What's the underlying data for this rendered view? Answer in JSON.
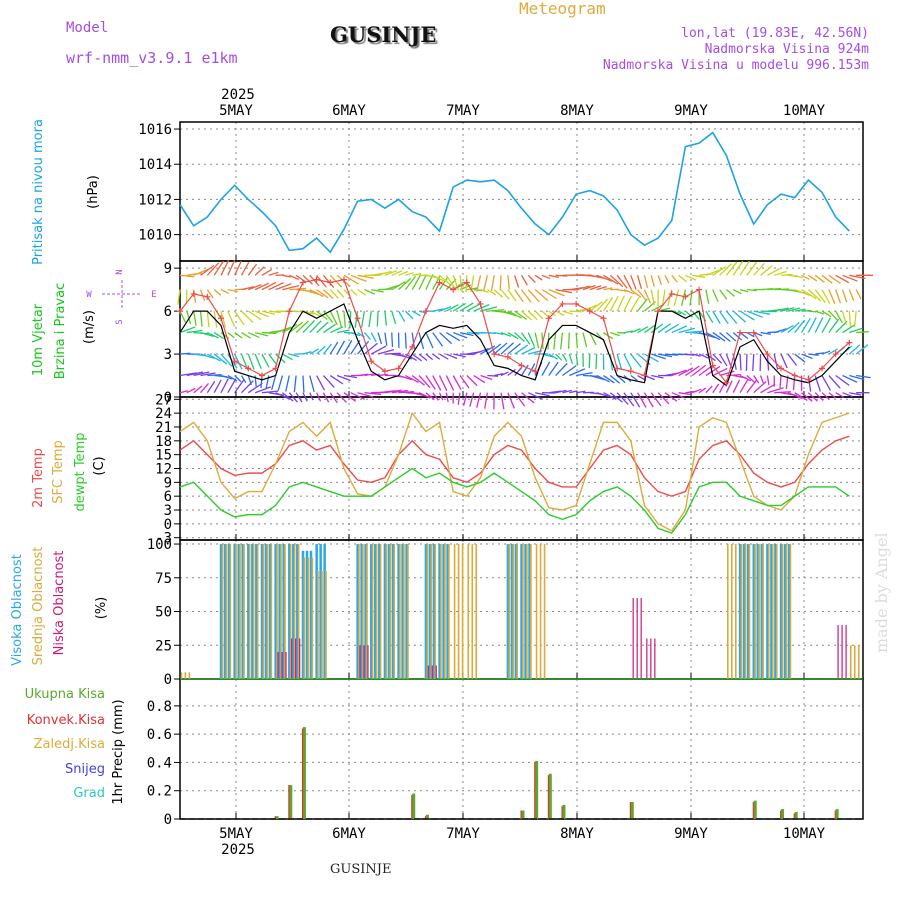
{
  "header": {
    "model_label": "Model",
    "model_name": "wrf-nmm_v3.9.1 e1km",
    "title": "GUSINJE",
    "meteogram": "Meteogram",
    "lonlat": "lon,lat (19.83E, 42.56N)",
    "altitude": "Nadmorska Visina 924m",
    "model_altitude": "Nadmorska Visina u modelu 996.153m",
    "bottom_title": "GUSINJE",
    "watermark": "made by Angel",
    "year": "2025"
  },
  "colors": {
    "pressure": "#1ca3e6",
    "wind_label": "#16c61c",
    "t2m": "#ec4c4c",
    "sfc": "#e0aa3a",
    "dewpt": "#2ccc2c",
    "high_cloud": "#2aa8e8",
    "mid_cloud": "#dcaa3c",
    "low_cloud": "#cc1a78",
    "precip_total": "#5aaa2a",
    "precip_conv": "#dd3333",
    "wind_speed_max": "#ec4c4c",
    "wind_speed": "#000000",
    "compass": "#a64ce6"
  },
  "chart_data": [
    {
      "panel": "pressure",
      "type": "line",
      "ylabel_side": "Pritisak na nivou mora",
      "ylabel": "(hPa)",
      "x_labels": [
        "5MAY",
        "6MAY",
        "7MAY",
        "8MAY",
        "9MAY",
        "10MAY"
      ],
      "ylim": [
        1008.5,
        1016.4
      ],
      "yticks": [
        1010,
        1012,
        1014,
        1016
      ],
      "grid": true,
      "x_hours": [
        0,
        3,
        6,
        9,
        12,
        15,
        18,
        21,
        24,
        27,
        30,
        33,
        36,
        39,
        42,
        45,
        48,
        51,
        54,
        57,
        60,
        63,
        66,
        69,
        72,
        75,
        78,
        81,
        84,
        87,
        90,
        93,
        96,
        99,
        102,
        105,
        108,
        111,
        114,
        117,
        120,
        123,
        126,
        129,
        132,
        135,
        138,
        141,
        144,
        147
      ],
      "series": [
        {
          "values": [
            1011.7,
            1010.5,
            1011.0,
            1012.0,
            1012.8,
            1012.0,
            1011.3,
            1010.5,
            1009.1,
            1009.2,
            1009.8,
            1009.0,
            1010.3,
            1011.9,
            1012.0,
            1011.5,
            1012.0,
            1011.3,
            1011.0,
            1010.2,
            1012.7,
            1013.1,
            1013.0,
            1013.1,
            1012.5,
            1011.5,
            1010.6,
            1010.0,
            1011.0,
            1012.3,
            1012.5,
            1012.2,
            1011.4,
            1010.0,
            1009.4,
            1009.8,
            1010.8,
            1015.0,
            1015.2,
            1015.8,
            1014.5,
            1012.3,
            1010.6,
            1011.7,
            1012.3,
            1012.1,
            1013.1,
            1012.4,
            1011.0,
            1010.2
          ]
        }
      ]
    },
    {
      "panel": "wind",
      "type": "line",
      "ylabel_side": "10m Vjetar Brzina i Pravac",
      "ylabel": "(m/s)",
      "compass": [
        "N",
        "W",
        "E",
        "S"
      ],
      "ylim": [
        0,
        9.5
      ],
      "yticks": [
        0,
        3,
        6,
        9
      ],
      "grid": true,
      "x_hours": [
        0,
        3,
        6,
        9,
        12,
        15,
        18,
        21,
        24,
        27,
        30,
        33,
        36,
        39,
        42,
        45,
        48,
        51,
        54,
        57,
        60,
        63,
        66,
        69,
        72,
        75,
        78,
        81,
        84,
        87,
        90,
        93,
        96,
        99,
        102,
        105,
        108,
        111,
        114,
        117,
        120,
        123,
        126,
        129,
        132,
        135,
        138,
        141,
        144,
        147
      ],
      "series": [
        {
          "name": "speed",
          "values": [
            4.5,
            6.0,
            6.0,
            5.0,
            1.8,
            1.5,
            1.2,
            1.5,
            4.5,
            6.0,
            5.5,
            6.0,
            6.5,
            4.0,
            1.8,
            1.2,
            1.5,
            3.0,
            4.5,
            5.0,
            4.8,
            5.0,
            4.0,
            2.2,
            2.0,
            1.5,
            1.2,
            4.0,
            5.0,
            5.0,
            4.5,
            4.0,
            1.5,
            1.2,
            1.0,
            6.0,
            6.0,
            5.5,
            6.0,
            1.5,
            0.8,
            3.5,
            4.0,
            2.5,
            1.5,
            1.2,
            1.0,
            1.5,
            2.5,
            3.5
          ]
        },
        {
          "name": "gust",
          "values": [
            6.0,
            7.2,
            7.0,
            5.5,
            2.5,
            2.0,
            1.5,
            2.0,
            6.0,
            8.0,
            8.2,
            8.0,
            8.2,
            5.5,
            2.5,
            1.8,
            2.0,
            3.5,
            6.0,
            8.0,
            7.5,
            8.0,
            6.5,
            3.0,
            2.8,
            2.2,
            1.8,
            5.5,
            6.5,
            6.5,
            6.0,
            5.5,
            2.0,
            1.8,
            1.5,
            6.0,
            7.2,
            7.0,
            7.5,
            2.2,
            1.0,
            4.5,
            4.5,
            3.0,
            2.0,
            1.5,
            1.2,
            2.0,
            3.0,
            3.8
          ]
        }
      ],
      "arrow_rows": [
        0.3,
        1.5,
        3.0,
        4.5,
        6.0,
        7.5,
        8.5
      ]
    },
    {
      "panel": "temperature",
      "type": "line",
      "ylabel_side": [
        "2m Temp",
        "SFC Temp",
        "dewpt Temp"
      ],
      "ylabel": "(C)",
      "ylim": [
        -3.5,
        27.5
      ],
      "yticks": [
        -3,
        0,
        3,
        6,
        9,
        12,
        15,
        18,
        21,
        24,
        27
      ],
      "grid": true,
      "x_hours": [
        0,
        3,
        6,
        9,
        12,
        15,
        18,
        21,
        24,
        27,
        30,
        33,
        36,
        39,
        42,
        45,
        48,
        51,
        54,
        57,
        60,
        63,
        66,
        69,
        72,
        75,
        78,
        81,
        84,
        87,
        90,
        93,
        96,
        99,
        102,
        105,
        108,
        111,
        114,
        117,
        120,
        123,
        126,
        129,
        132,
        135,
        138,
        141,
        144,
        147
      ],
      "series": [
        {
          "name": "2m Temp",
          "values": [
            16,
            18,
            15,
            12,
            10.5,
            11,
            11,
            13,
            17,
            18,
            16,
            17,
            13,
            9.5,
            9,
            10,
            15,
            18,
            15,
            14,
            10,
            9,
            11,
            15,
            17,
            16,
            12,
            9,
            8,
            8,
            12,
            16,
            17,
            15,
            10,
            7,
            6,
            7,
            14,
            17,
            18,
            15,
            11,
            9,
            8,
            9,
            13,
            16,
            18,
            19
          ]
        },
        {
          "name": "SFC Temp",
          "values": [
            20,
            22,
            18,
            9,
            5.5,
            7,
            7,
            13,
            20,
            22,
            19,
            22,
            12,
            6.5,
            6,
            8,
            15,
            24,
            20,
            22,
            7,
            6,
            10,
            19,
            22,
            19,
            10,
            3.5,
            3,
            4,
            13,
            22,
            22,
            18,
            4,
            0,
            -1.5,
            3,
            21,
            23,
            22,
            14,
            6,
            4,
            3,
            6,
            15,
            22,
            23,
            24
          ]
        },
        {
          "name": "dewpt Temp",
          "values": [
            8,
            9,
            6,
            3,
            1.5,
            2,
            2,
            4,
            8,
            9,
            8,
            7,
            6,
            6,
            6,
            8,
            10,
            12,
            10,
            11,
            9,
            8,
            9,
            11,
            9,
            7,
            5,
            2,
            1,
            2,
            5,
            7,
            8,
            6,
            3,
            -1,
            -2,
            2,
            8,
            9,
            9,
            6,
            5,
            4,
            4,
            6,
            8,
            8,
            8,
            6
          ]
        }
      ]
    },
    {
      "panel": "clouds",
      "type": "bar",
      "ylabel_side": [
        "Visoka Oblacnost",
        "Srednja Oblacnost",
        "Niska Oblacnost"
      ],
      "ylabel": "(%)",
      "ylim": [
        0,
        103
      ],
      "yticks": [
        0,
        25,
        50,
        75,
        100
      ],
      "grid": true,
      "x_hours": [
        0,
        3,
        6,
        9,
        12,
        15,
        18,
        21,
        24,
        27,
        30,
        33,
        36,
        39,
        42,
        45,
        48,
        51,
        54,
        57,
        60,
        63,
        66,
        69,
        72,
        75,
        78,
        81,
        84,
        87,
        90,
        93,
        96,
        99,
        102,
        105,
        108,
        111,
        114,
        117,
        120,
        123,
        126,
        129,
        132,
        135,
        138,
        141,
        144,
        147
      ],
      "series": [
        {
          "name": "Visoka Oblacnost",
          "values": [
            0,
            0,
            0,
            100,
            100,
            100,
            100,
            100,
            100,
            95,
            100,
            0,
            0,
            100,
            100,
            100,
            100,
            0,
            100,
            100,
            0,
            0,
            0,
            0,
            100,
            100,
            0,
            0,
            0,
            0,
            0,
            0,
            0,
            0,
            0,
            0,
            0,
            0,
            0,
            0,
            0,
            100,
            100,
            100,
            100,
            0,
            0,
            0,
            0,
            0
          ]
        },
        {
          "name": "Srednja Oblacnost",
          "values": [
            5,
            0,
            0,
            100,
            100,
            100,
            100,
            100,
            100,
            90,
            80,
            0,
            0,
            100,
            100,
            100,
            100,
            0,
            100,
            100,
            100,
            100,
            0,
            0,
            100,
            100,
            100,
            0,
            0,
            0,
            0,
            0,
            0,
            0,
            0,
            0,
            0,
            0,
            0,
            0,
            100,
            100,
            100,
            100,
            100,
            0,
            0,
            0,
            0,
            25
          ]
        },
        {
          "name": "Niska Oblacnost",
          "values": [
            0,
            0,
            0,
            0,
            0,
            0,
            0,
            20,
            30,
            0,
            0,
            0,
            0,
            25,
            0,
            0,
            0,
            0,
            10,
            0,
            0,
            0,
            0,
            0,
            0,
            0,
            0,
            0,
            0,
            0,
            0,
            0,
            0,
            60,
            30,
            0,
            0,
            0,
            0,
            0,
            0,
            0,
            0,
            0,
            0,
            0,
            0,
            0,
            40,
            0
          ]
        }
      ]
    },
    {
      "panel": "precipitation",
      "type": "bar",
      "ylabel_side": [
        "Ukupna Kisa",
        "Konvek.Kisa",
        "Zaledj.Kisa",
        "Snijeg",
        "Grad"
      ],
      "ylabel": "1hr Precip (mm)",
      "ylim": [
        0,
        0.99
      ],
      "yticks": [
        0,
        0.2,
        0.4,
        0.6,
        0.8
      ],
      "grid": true,
      "x_hours": [
        0,
        3,
        6,
        9,
        12,
        15,
        18,
        21,
        24,
        27,
        30,
        33,
        36,
        39,
        42,
        45,
        48,
        51,
        54,
        57,
        60,
        63,
        66,
        69,
        72,
        75,
        78,
        81,
        84,
        87,
        90,
        93,
        96,
        99,
        102,
        105,
        108,
        111,
        114,
        117,
        120,
        123,
        126,
        129,
        132,
        135,
        138,
        141,
        144,
        147
      ],
      "series": [
        {
          "name": "Ukupna Kisa",
          "values": [
            0,
            0,
            0,
            0,
            0,
            0,
            0,
            0.02,
            0.24,
            0.65,
            0,
            0,
            0,
            0,
            0,
            0,
            0,
            0.18,
            0.03,
            0,
            0,
            0,
            0,
            0,
            0,
            0.06,
            0.41,
            0.32,
            0.1,
            0,
            0,
            0,
            0,
            0.12,
            0,
            0,
            0,
            0,
            0,
            0,
            0,
            0,
            0.13,
            0,
            0.07,
            0.05,
            0,
            0,
            0.07,
            0
          ]
        },
        {
          "name": "Konvek.Kisa",
          "values": [
            0,
            0,
            0,
            0,
            0,
            0,
            0,
            0.02,
            0.24,
            0.64,
            0,
            0,
            0,
            0,
            0,
            0,
            0,
            0.17,
            0.02,
            0,
            0,
            0,
            0,
            0,
            0,
            0.06,
            0.4,
            0.31,
            0.09,
            0,
            0,
            0,
            0,
            0.12,
            0,
            0,
            0,
            0,
            0,
            0,
            0,
            0,
            0.12,
            0,
            0.06,
            0.04,
            0,
            0,
            0.06,
            0
          ]
        }
      ],
      "x_labels_bottom": [
        "5MAY",
        "6MAY",
        "7MAY",
        "8MAY",
        "9MAY",
        "10MAY"
      ]
    }
  ]
}
